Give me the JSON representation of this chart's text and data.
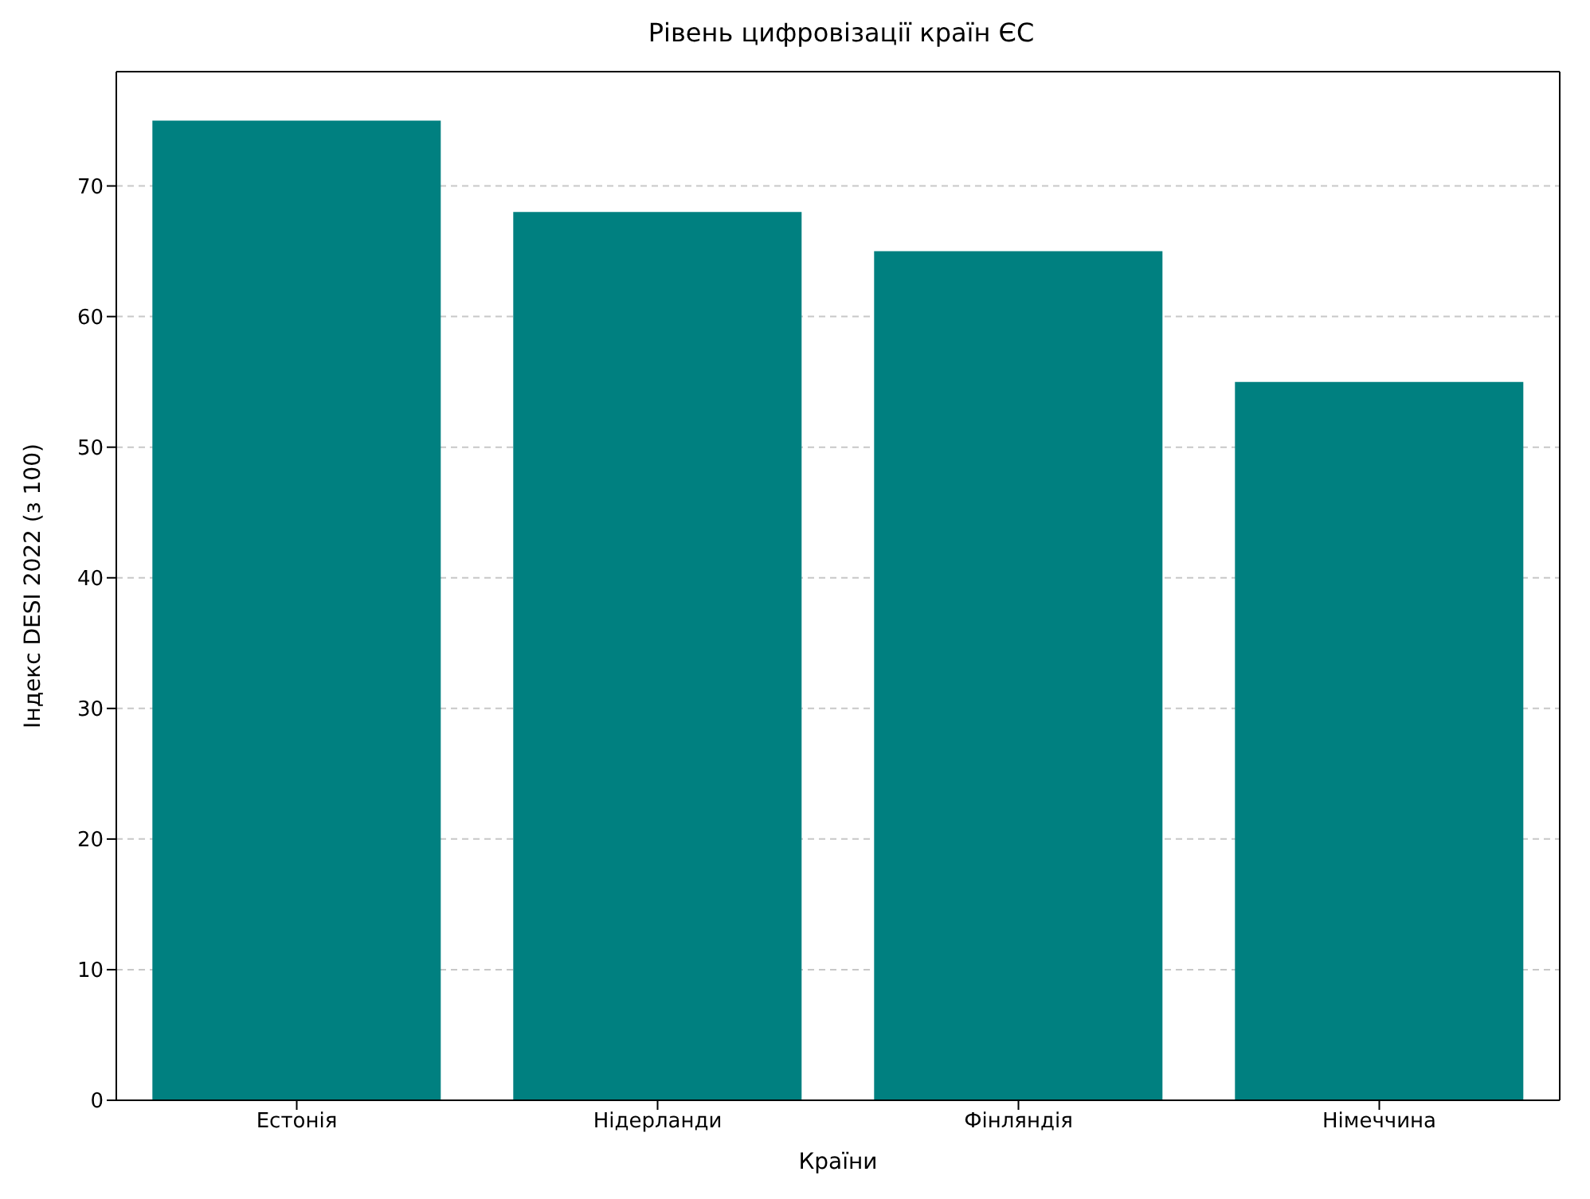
{
  "chart_data": {
    "type": "bar",
    "title": "Рівень цифровізації країн ЄС",
    "xlabel": "Країни",
    "ylabel": "Індекс DESI 2022 (з 100)",
    "categories": [
      "Естонія",
      "Нідерланди",
      "Фінляндія",
      "Німеччина"
    ],
    "values": [
      75,
      68,
      65,
      55
    ],
    "color": "#008080",
    "ylim": [
      0,
      78.75
    ],
    "yticks": [
      0,
      10,
      20,
      30,
      40,
      50,
      60,
      70
    ],
    "grid": "y"
  }
}
